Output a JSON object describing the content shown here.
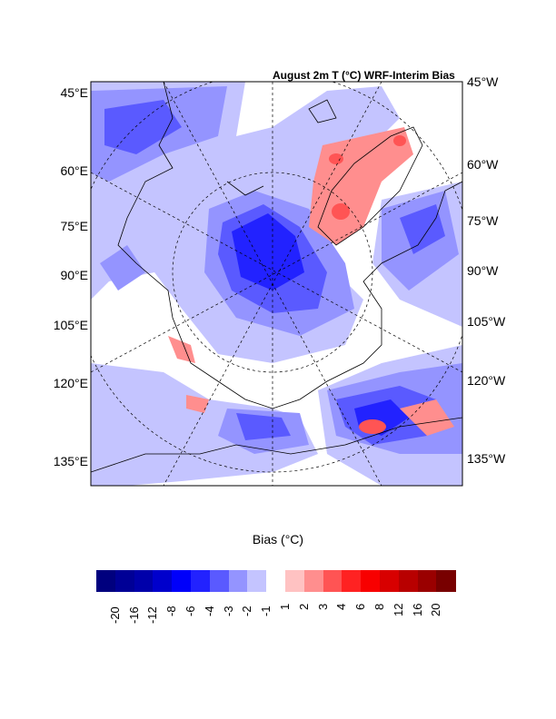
{
  "title": "August 2m T (°C) WRF-Interim Bias",
  "left_labels": [
    "45°E",
    "60°E",
    "75°E",
    "90°E",
    "105°E",
    "120°E",
    "135°E"
  ],
  "right_labels": [
    "45°W",
    "60°W",
    "75°W",
    "90°W",
    "105°W",
    "120°W",
    "135°W"
  ],
  "colorbar": {
    "title": "Bias (°C)",
    "labels": [
      "-20",
      "-16",
      "-12",
      "-8",
      "-6",
      "-4",
      "-3",
      "-2",
      "-1",
      "1",
      "2",
      "3",
      "4",
      "6",
      "8",
      "12",
      "16",
      "20"
    ],
    "colors": [
      "#00007e",
      "#000096",
      "#0000aa",
      "#0000cc",
      "#0000fa",
      "#2222ff",
      "#5a5aff",
      "#9494ff",
      "#c4c4ff",
      "#ffffff",
      "#ffc2c2",
      "#ff8e8e",
      "#ff5454",
      "#ff2222",
      "#f80000",
      "#d80000",
      "#b80000",
      "#9a0000",
      "#780000"
    ]
  }
}
